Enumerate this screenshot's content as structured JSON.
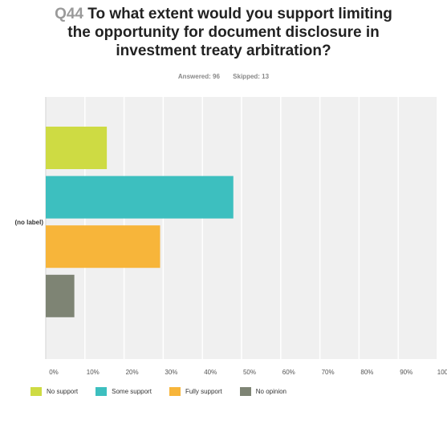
{
  "header": {
    "qnum": "Q44",
    "title_rest": "To what extent would you support limiting the opportunity for document disclosure in investment treaty arbitration?"
  },
  "meta": {
    "answered": "Answered: 96",
    "skipped": "Skipped: 13"
  },
  "chart_data": {
    "type": "bar",
    "orientation": "horizontal",
    "categories": [
      "(no label)"
    ],
    "series": [
      {
        "name": "No support",
        "values": [
          15.6
        ],
        "color": "#cedb43"
      },
      {
        "name": "Some support",
        "values": [
          47.9
        ],
        "color": "#3dbfbf"
      },
      {
        "name": "Fully support",
        "values": [
          29.2
        ],
        "color": "#f7b53a"
      },
      {
        "name": "No opinion",
        "values": [
          7.3
        ],
        "color": "#7e8474"
      }
    ],
    "x_ticks": [
      "0%",
      "10%",
      "20%",
      "30%",
      "40%",
      "50%",
      "60%",
      "70%",
      "80%",
      "90%",
      "100%"
    ],
    "xlim": [
      0,
      100
    ],
    "grid": true,
    "legend": "bottom"
  }
}
